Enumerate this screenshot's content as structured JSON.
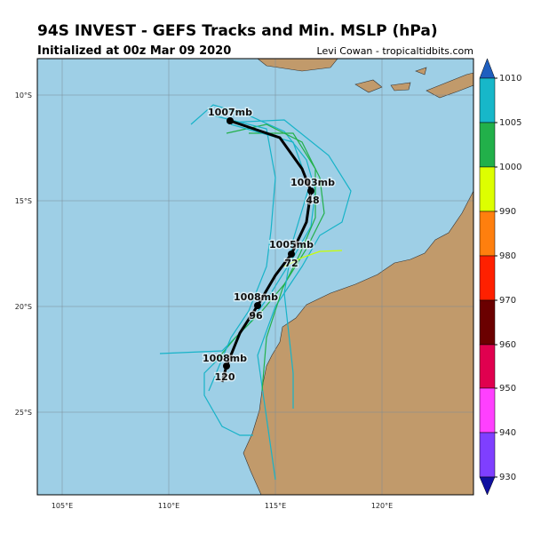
{
  "header": {
    "title": "94S INVEST - GEFS Tracks and Min. MSLP (hPa)",
    "subtitle": "Initialized at 00z Mar 09 2020",
    "credit": "Levi Cowan - tropicaltidbits.com"
  },
  "map": {
    "lon_labels": [
      "105°E",
      "110°E",
      "115°E",
      "120°E"
    ],
    "lat_labels": [
      "10°S",
      "15°S",
      "20°S",
      "25°S"
    ],
    "mean_track": [
      {
        "pressure": "1007mb"
      },
      {
        "pressure": "1003mb",
        "hour": "48"
      },
      {
        "pressure": "1005mb",
        "hour": "72"
      },
      {
        "pressure": "1008mb",
        "hour": "96"
      },
      {
        "pressure": "1008mb",
        "hour": "120"
      }
    ]
  },
  "colorbar": {
    "labels": [
      1010,
      1005,
      1000,
      990,
      980,
      970,
      960,
      950,
      940,
      930
    ]
  }
}
